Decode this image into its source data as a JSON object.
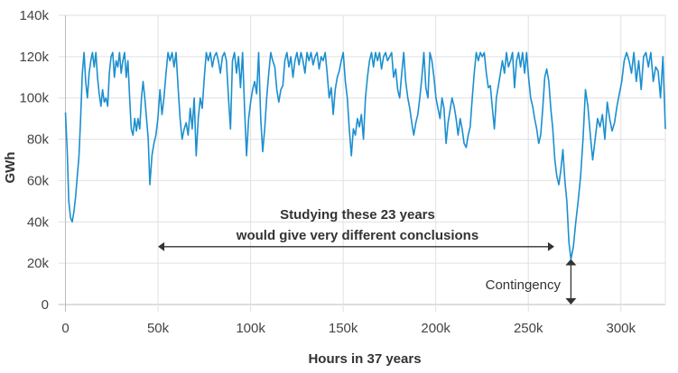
{
  "chart_data": {
    "type": "line",
    "title": "",
    "xlabel": "Hours in 37 years",
    "ylabel": "GWh",
    "xlim": [
      0,
      324000
    ],
    "ylim": [
      0,
      140000
    ],
    "grid": true,
    "xticks": [
      0,
      50000,
      100000,
      150000,
      200000,
      250000,
      300000
    ],
    "xtick_labels": [
      "0",
      "50k",
      "100k",
      "150k",
      "200k",
      "250k",
      "300k"
    ],
    "yticks": [
      0,
      20000,
      40000,
      60000,
      80000,
      100000,
      120000,
      140000
    ],
    "ytick_labels": [
      "0",
      "20k",
      "40k",
      "60k",
      "80k",
      "100k",
      "120k",
      "140k"
    ],
    "line_color": "#1b8fcf",
    "series": [
      {
        "name": "GWh",
        "unit_x": "thousand hours",
        "unit_y": "thousand GWh",
        "segments": [
          {
            "x_start": 0,
            "x_end": 45.6,
            "values": [
              93,
              75,
              50,
              42,
              40,
              45,
              52,
              62,
              72,
              90,
              112,
              122,
              108,
              100,
              112,
              118,
              122,
              115,
              122,
              110,
              102,
              96,
              104,
              98,
              100,
              96,
              112,
              120,
              122,
              110,
              118,
              115,
              122,
              112,
              118,
              122,
              110,
              118,
              100,
              85,
              82,
              90,
              84,
              90,
              85,
              100,
              108,
              100,
              90,
              80,
              58
            ]
          },
          {
            "x_start": 45.6,
            "x_end": 273,
            "values": [
              58,
              72,
              78,
              82,
              90,
              104,
              92,
              100,
              112,
              122,
              118,
              122,
              115,
              122,
              105,
              90,
              80,
              85,
              88,
              82,
              95,
              85,
              100,
              72,
              90,
              100,
              95,
              110,
              122,
              118,
              122,
              115,
              120,
              122,
              118,
              112,
              120,
              122,
              118,
              100,
              85,
              118,
              122,
              112,
              120,
              105,
              122,
              95,
              72,
              90,
              98,
              104,
              108,
              102,
              122,
              90,
              74,
              85,
              100,
              112,
              122,
              118,
              115,
              104,
              98,
              104,
              106,
              118,
              122,
              115,
              120,
              110,
              118,
              122,
              116,
              122,
              118,
              112,
              122,
              118,
              122,
              116,
              120,
              122,
              114,
              120,
              118,
              122,
              112,
              100,
              105,
              92,
              104,
              110,
              113,
              118,
              122,
              108,
              100,
              85,
              72,
              85,
              82,
              90,
              86,
              92,
              80,
              100,
              110,
              118,
              122,
              115,
              122,
              118,
              122,
              114,
              120,
              122,
              118,
              120,
              122,
              110,
              114,
              104,
              100,
              112,
              122,
              108,
              100,
              95,
              88,
              82,
              88,
              92,
              100,
              110,
              122,
              105,
              100,
              122,
              118,
              110,
              100,
              95,
              90,
              100,
              95,
              78,
              88,
              94,
              100,
              96,
              90,
              82,
              90,
              85,
              78,
              76,
              82,
              86,
              100,
              112,
              122,
              118,
              122,
              120,
              122,
              112,
              105,
              106,
              95,
              85,
              100,
              106,
              112,
              118,
              112,
              122,
              115,
              118,
              122,
              105,
              118,
              122,
              115,
              122,
              112,
              122,
              110,
              100,
              96,
              90,
              85,
              78,
              82,
              95,
              110,
              114,
              108,
              95,
              85,
              70,
              62,
              58,
              65,
              75,
              60,
              50,
              30,
              22
            ]
          },
          {
            "x_start": 273,
            "x_end": 324,
            "values": [
              22,
              28,
              40,
              50,
              62,
              80,
              104,
              96,
              82,
              70,
              80,
              90,
              86,
              92,
              80,
              98,
              90,
              84,
              88,
              96,
              102,
              108,
              118,
              122,
              118,
              112,
              122,
              108,
              118,
              104,
              120,
              122,
              115,
              122,
              108,
              115,
              113,
              100,
              120,
              85
            ]
          }
        ]
      }
    ],
    "annotations": {
      "range_text_line1": "Studying these 23 years",
      "range_text_line2": "would give very different conclusions",
      "range_arrow_x": [
        50000,
        264000
      ],
      "range_arrow_y": 28000,
      "contingency_label": "Contingency",
      "contingency_x": 273000,
      "contingency_y_range": [
        0,
        22000
      ]
    }
  }
}
